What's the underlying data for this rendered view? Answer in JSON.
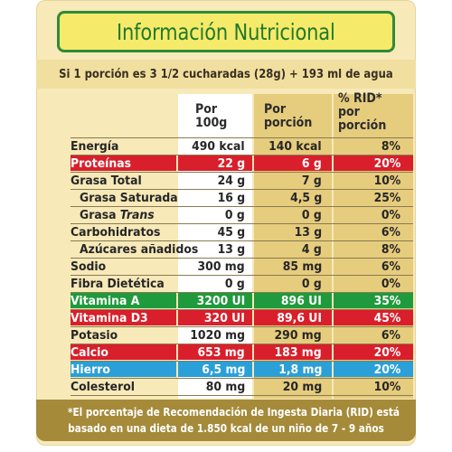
{
  "title": "Información Nutricional",
  "subtitle": "Si 1 porción es 3 1/2 cucharadas (28g) + 193 ml de agua",
  "headers": {
    "per100_line1": "Por",
    "per100_line2": "100g",
    "perserving_line1": "Por",
    "perserving_line2": "porción",
    "rid_line1": "% RID*",
    "rid_line2": "por",
    "rid_line3": "porción"
  },
  "rows": [
    {
      "label": "Energía",
      "per100": "490 kcal",
      "per_serving": "140 kcal",
      "rid": "8%"
    },
    {
      "label": "Proteínas",
      "per100": "22 g",
      "per_serving": "6 g",
      "rid": "20%",
      "highlight": "#d91f2b"
    },
    {
      "label": "Grasa Total",
      "per100": "24 g",
      "per_serving": "7 g",
      "rid": "10%"
    },
    {
      "label": "Grasa Saturada",
      "per100": "16 g",
      "per_serving": "4,5 g",
      "rid": "25%"
    },
    {
      "label_part1": "Grasa ",
      "label_part2": "Trans",
      "per100": "0 g",
      "per_serving": "0 g",
      "rid": "0%"
    },
    {
      "label": "Carbohidratos",
      "per100": "45 g",
      "per_serving": "13 g",
      "rid": "6%"
    },
    {
      "label": "Azúcares añadidos",
      "per100": "13 g",
      "per_serving": "4 g",
      "rid": "8%"
    },
    {
      "label": "Sodio",
      "per100": "300 mg",
      "per_serving": "85 mg",
      "rid": "6%"
    },
    {
      "label": "Fibra Dietética",
      "per100": "0 g",
      "per_serving": "0 g",
      "rid": "0%"
    },
    {
      "label": "Vitamina A",
      "per100": "3200 UI",
      "per_serving": "896 UI",
      "rid": "35%",
      "highlight": "#1f9a3c"
    },
    {
      "label": "Vitamina D3",
      "per100": "320 UI",
      "per_serving": "89,6 UI",
      "rid": "45%",
      "highlight": "#d91f2b"
    },
    {
      "label": "Potasio",
      "per100": "1020 mg",
      "per_serving": "290 mg",
      "rid": "6%"
    },
    {
      "label": "Calcio",
      "per100": "653 mg",
      "per_serving": "183 mg",
      "rid": "20%",
      "highlight": "#d91f2b"
    },
    {
      "label": "Hierro",
      "per100": "6,5 mg",
      "per_serving": "1,8 mg",
      "rid": "20%",
      "highlight": "#2a9fd8"
    },
    {
      "label": "Colesterol",
      "per100": "80 mg",
      "per_serving": "20 mg",
      "rid": "10%"
    }
  ],
  "footnote_line1": "*El porcentaje de Recomendación de Ingesta Diaria (RID) está",
  "footnote_line2": "basado en una dieta de 1.850 kcal de un niño de 7 - 9 años",
  "colors": {
    "title_green": "#1f7a2a",
    "title_bg": "#f6ea6a",
    "panel_bg": "#f7e9b8",
    "gold_column": "#e6cc7d",
    "footer_bg": "#a58a3a"
  }
}
